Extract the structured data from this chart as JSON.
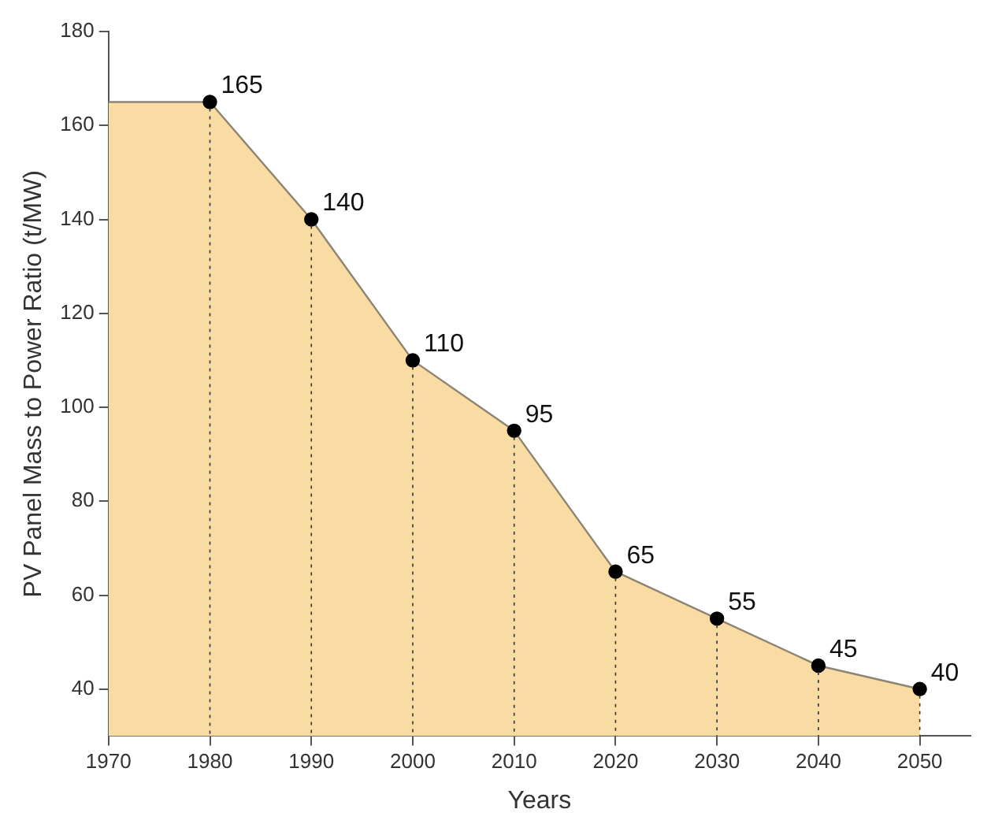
{
  "chart_data": {
    "type": "area",
    "xlabel": "Years",
    "ylabel": "PV Panel Mass to Power Ratio (t/MW)",
    "x": [
      1970,
      1980,
      1990,
      2000,
      2010,
      2020,
      2030,
      2040,
      2050
    ],
    "series": [
      {
        "color": "#f9dba4",
        "values": [
          165,
          165,
          140,
          110,
          95,
          65,
          55,
          45,
          40
        ],
        "value_labels": [
          null,
          "165",
          "140",
          "110",
          "95",
          "65",
          "55",
          "45",
          "40"
        ]
      }
    ],
    "xlim": [
      1970,
      2055
    ],
    "xticks": [
      1970,
      1980,
      1990,
      2000,
      2010,
      2020,
      2030,
      2040,
      2050
    ],
    "ylim": [
      30,
      180
    ],
    "yticks": [
      40,
      60,
      80,
      100,
      120,
      140,
      160,
      180
    ],
    "legend": false,
    "marker": "circle"
  }
}
